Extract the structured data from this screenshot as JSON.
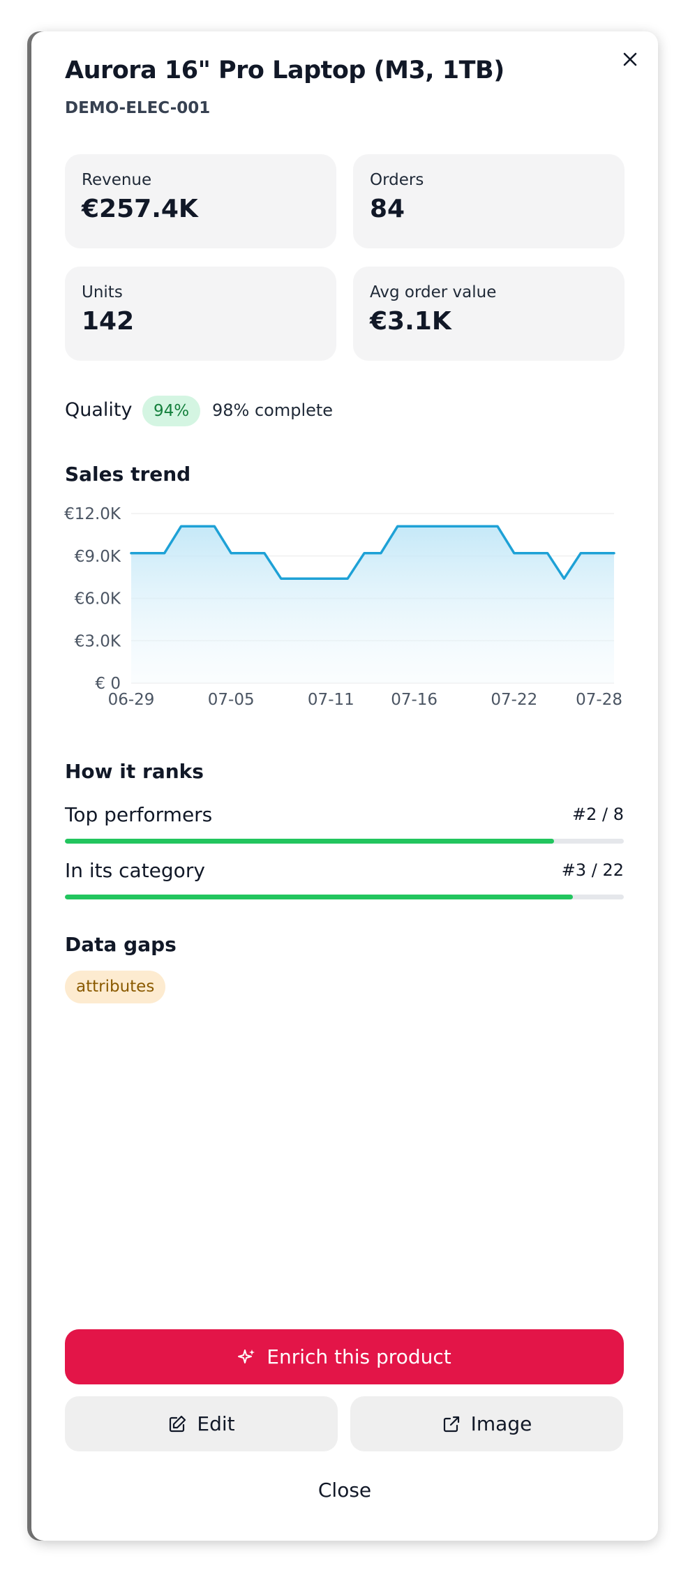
{
  "header": {
    "title": "Aurora 16\" Pro Laptop (M3, 1TB)",
    "sku": "DEMO-ELEC-001"
  },
  "stats": [
    {
      "label": "Revenue",
      "value": "€257.4K"
    },
    {
      "label": "Orders",
      "value": "84"
    },
    {
      "label": "Units",
      "value": "142"
    },
    {
      "label": "Avg order value",
      "value": "€3.1K"
    }
  ],
  "quality": {
    "label": "Quality",
    "score": "94%",
    "completeness": "98% complete"
  },
  "chart_data": {
    "type": "area",
    "title": "Sales trend",
    "categories": [
      "06-29",
      null,
      null,
      null,
      null,
      null,
      "07-05",
      null,
      null,
      null,
      null,
      null,
      "07-11",
      null,
      null,
      null,
      null,
      "07-16",
      null,
      null,
      null,
      null,
      null,
      "07-22",
      null,
      null,
      null,
      null,
      null,
      "07-28"
    ],
    "values": [
      9200,
      9200,
      9200,
      11100,
      11100,
      11100,
      9200,
      9200,
      9200,
      7400,
      7400,
      7400,
      7400,
      7400,
      9200,
      9200,
      11100,
      11100,
      11100,
      11100,
      11100,
      11100,
      11100,
      9200,
      9200,
      9200,
      7400,
      9200,
      9200,
      9200
    ],
    "color": "#1ea1d6",
    "ylim": [
      0,
      12000
    ],
    "yticks": [
      {
        "value": 0,
        "label": "€ 0"
      },
      {
        "value": 3000,
        "label": "€3.0K"
      },
      {
        "value": 6000,
        "label": "€6.0K"
      },
      {
        "value": 9000,
        "label": "€9.0K"
      },
      {
        "value": 12000,
        "label": "€12.0K"
      }
    ],
    "grid": true
  },
  "rankings": {
    "title": "How it ranks",
    "items": [
      {
        "label": "Top performers",
        "rank": 2,
        "of": 8,
        "rank_label": "#2 / 8"
      },
      {
        "label": "In its category",
        "rank": 3,
        "of": 22,
        "rank_label": "#3 / 22"
      }
    ]
  },
  "data_gaps": {
    "title": "Data gaps",
    "items": [
      "attributes"
    ]
  },
  "actions": {
    "primary": "Enrich this product",
    "edit": "Edit",
    "image": "Image",
    "close": "Close"
  }
}
